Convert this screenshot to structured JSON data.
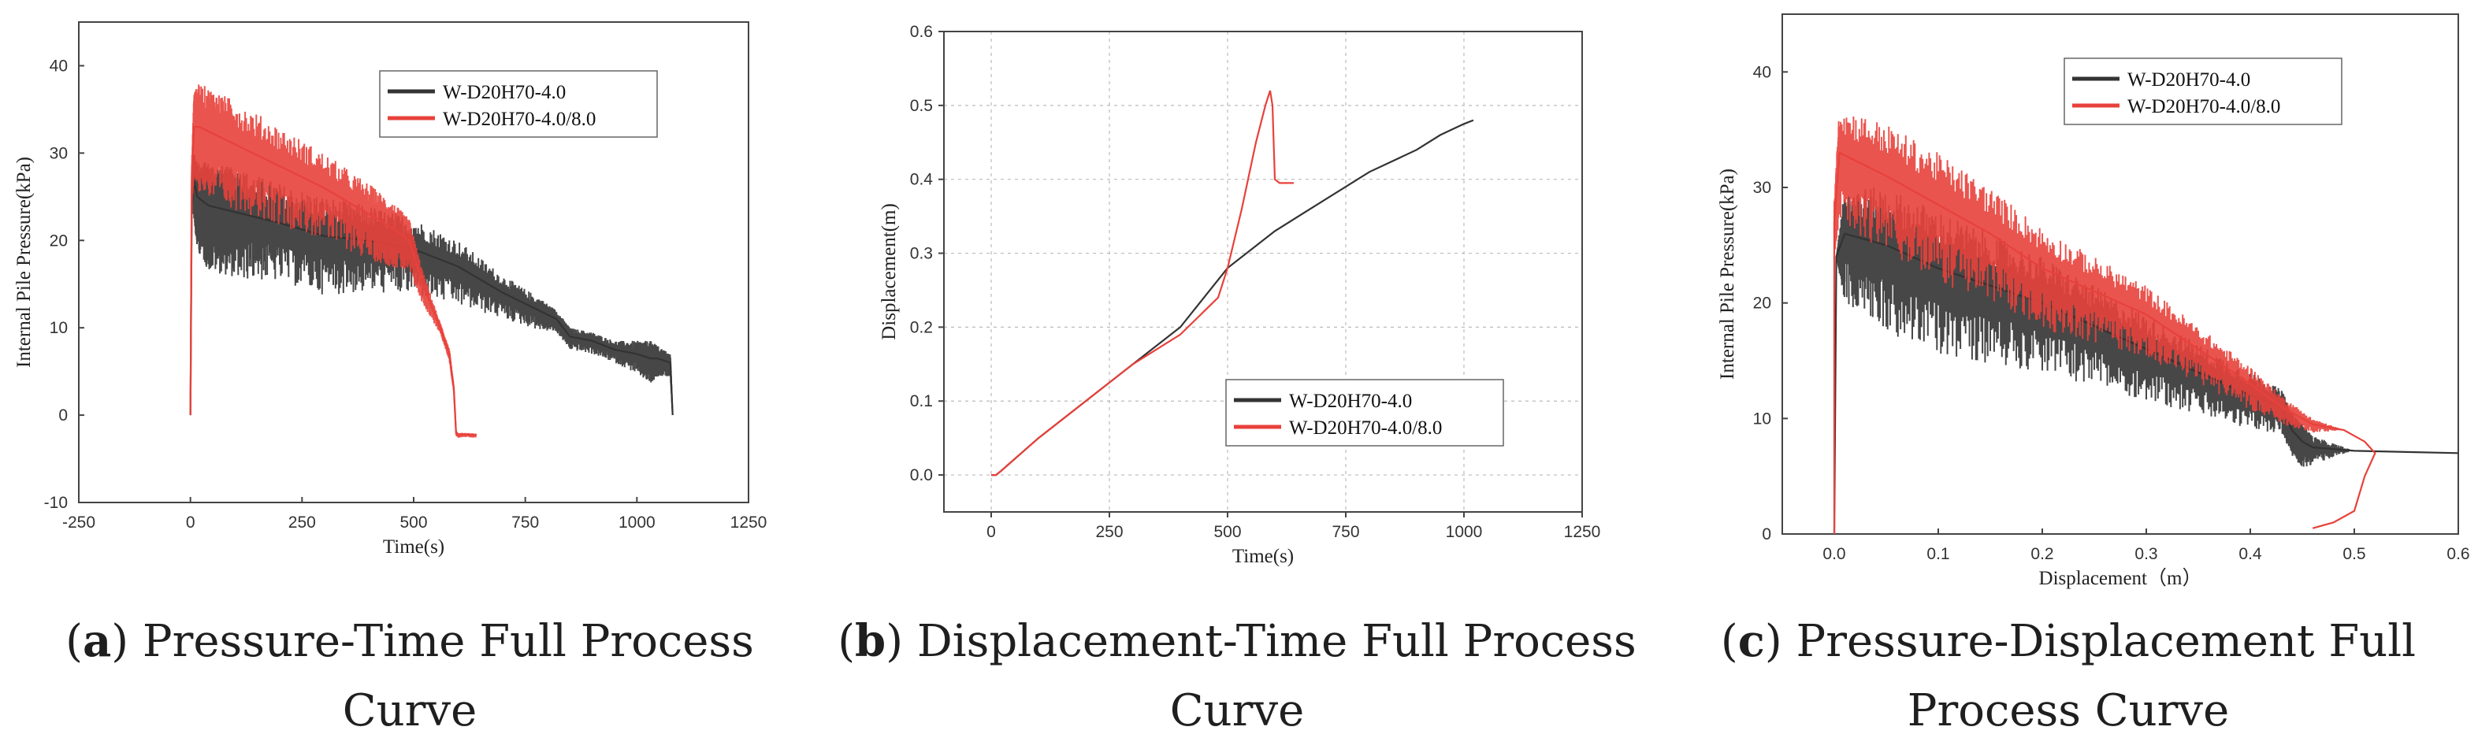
{
  "chart_data": [
    {
      "type": "line",
      "caption_letter": "a",
      "caption_text": "Pressure-Time Full Process Curve",
      "xlabel": "Time(s)",
      "ylabel": "Internal Pile Pressure(kPa)",
      "xlim": [
        -250,
        1250
      ],
      "ylim": [
        -10,
        45
      ],
      "xticks": [
        -250,
        0,
        250,
        500,
        750,
        1000,
        1250
      ],
      "yticks": [
        -10,
        0,
        10,
        20,
        30,
        40
      ],
      "grid": false,
      "legend_position": "top-right",
      "series": [
        {
          "name": "W-D20H70-4.0",
          "color": "#333333",
          "x": [
            0,
            3,
            8,
            15,
            40,
            80,
            120,
            200,
            300,
            400,
            500,
            600,
            700,
            780,
            820,
            850,
            900,
            950,
            1000,
            1030,
            1045,
            1075,
            1080
          ],
          "y": [
            0,
            24,
            27,
            25,
            24,
            23.5,
            23,
            22,
            20.5,
            20,
            19,
            17,
            14,
            12,
            11,
            9,
            8.5,
            7.5,
            7,
            6.5,
            6.5,
            6,
            0
          ],
          "band": [
            0,
            0,
            3,
            4,
            5,
            5,
            5,
            4.5,
            4.5,
            4,
            3.5,
            3,
            2,
            1.5,
            1,
            1,
            1,
            1,
            1.5,
            2,
            1.5,
            1,
            0
          ]
        },
        {
          "name": "W-D20H70-4.0/8.0",
          "color": "#e8413b",
          "x": [
            0,
            3,
            8,
            20,
            60,
            100,
            200,
            300,
            400,
            450,
            490,
            520,
            560,
            580,
            590,
            595,
            600,
            610,
            640
          ],
          "y": [
            0,
            27,
            33,
            33,
            32,
            31,
            28.5,
            26,
            23,
            21.5,
            20,
            15,
            10,
            7,
            3,
            -2,
            -2.3,
            -2.2,
            -2.3
          ],
          "band": [
            0,
            2,
            4,
            5,
            5,
            5,
            4.5,
            4,
            3.5,
            3,
            2.5,
            1.5,
            0.5,
            0.5,
            0.3,
            0.2,
            0.2,
            0.2,
            0.2
          ]
        }
      ]
    },
    {
      "type": "line",
      "caption_letter": "b",
      "caption_text": "Displacement-Time Full Process Curve",
      "xlabel": "Time(s)",
      "ylabel": "Displacement(m)",
      "xlim": [
        -100,
        1250
      ],
      "ylim": [
        -0.05,
        0.6
      ],
      "xticks": [
        0,
        250,
        500,
        750,
        1000,
        1250
      ],
      "yticks": [
        0.0,
        0.1,
        0.2,
        0.3,
        0.4,
        0.5,
        0.6
      ],
      "grid": true,
      "legend_position": "bottom-right",
      "series": [
        {
          "name": "W-D20H70-4.0",
          "color": "#333333",
          "x": [
            0,
            10,
            20,
            100,
            200,
            300,
            400,
            500,
            600,
            700,
            800,
            900,
            950,
            1000,
            1020
          ],
          "y": [
            0,
            0,
            0.005,
            0.05,
            0.1,
            0.15,
            0.2,
            0.28,
            0.33,
            0.37,
            0.41,
            0.44,
            0.46,
            0.475,
            0.48
          ],
          "band": []
        },
        {
          "name": "W-D20H70-4.0/8.0",
          "color": "#e8413b",
          "x": [
            0,
            10,
            20,
            100,
            200,
            300,
            400,
            480,
            500,
            530,
            560,
            580,
            590,
            595,
            600,
            610,
            640
          ],
          "y": [
            0,
            0,
            0.005,
            0.05,
            0.1,
            0.15,
            0.19,
            0.24,
            0.28,
            0.36,
            0.45,
            0.5,
            0.52,
            0.5,
            0.4,
            0.395,
            0.395
          ],
          "band": []
        }
      ]
    },
    {
      "type": "line",
      "caption_letter": "c",
      "caption_text": "Pressure-Displacement Full Process Curve",
      "xlabel": "Displacement（m）",
      "ylabel": "Internal Pile Pressure(kPa)",
      "xlim": [
        -0.05,
        0.6
      ],
      "ylim": [
        0,
        45
      ],
      "xticks": [
        0.0,
        0.1,
        0.2,
        0.3,
        0.4,
        0.5,
        0.6
      ],
      "yticks": [
        0,
        10,
        20,
        30,
        40
      ],
      "grid": false,
      "legend_position": "top-center",
      "series": [
        {
          "name": "W-D20H70-4.0",
          "color": "#333333",
          "x": [
            0,
            0.002,
            0.01,
            0.05,
            0.1,
            0.15,
            0.2,
            0.25,
            0.3,
            0.35,
            0.4,
            0.43,
            0.44,
            0.45,
            0.46,
            0.5,
            0.55,
            0.6
          ],
          "y": [
            0,
            24,
            26,
            25,
            23,
            21.5,
            20,
            18,
            16,
            14,
            12,
            11,
            9,
            8,
            7.5,
            7.2,
            7.1,
            7
          ],
          "band": [
            0,
            0,
            4,
            5,
            5,
            4.5,
            4,
            3.5,
            3,
            2.5,
            2,
            1.5,
            1.5,
            1.5,
            1,
            0,
            0,
            0
          ]
        },
        {
          "name": "W-D20H70-4.0/8.0",
          "color": "#e8413b",
          "x": [
            0,
            0.0,
            0.005,
            0.05,
            0.1,
            0.15,
            0.2,
            0.25,
            0.3,
            0.35,
            0.4,
            0.43,
            0.46,
            0.49,
            0.51,
            0.52,
            0.51,
            0.5,
            0.48,
            0.46
          ],
          "y": [
            0,
            27,
            33,
            31,
            28.5,
            26,
            23,
            21,
            19,
            16,
            13,
            11,
            9.5,
            9,
            8,
            7,
            5,
            2,
            1,
            0.5
          ],
          "band": [
            0,
            2,
            4,
            4.5,
            4.5,
            4,
            3.5,
            3,
            2.5,
            2,
            1.5,
            1,
            0.5,
            0,
            0,
            0,
            0,
            0,
            0,
            0
          ]
        }
      ]
    }
  ]
}
